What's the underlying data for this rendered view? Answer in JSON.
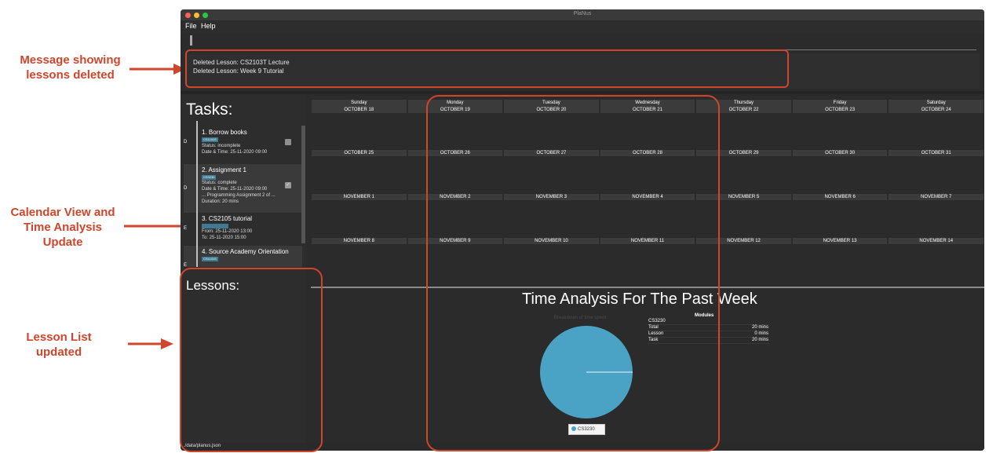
{
  "annotations": {
    "message_deleted": "Message showing\nlessons deleted",
    "calendar_time": "Calendar View and\nTime Analysis\nUpdate",
    "lesson_list": "Lesson List\nupdated"
  },
  "window": {
    "title": "PlaNus"
  },
  "menubar": {
    "items": [
      "File",
      "Help"
    ]
  },
  "result_display": {
    "lines": [
      "Deleted Lesson: CS2103T Lecture",
      "Deleted Lesson: Week 9 Tutorial"
    ]
  },
  "tasks": {
    "heading": "Tasks:",
    "items": [
      {
        "type": "D",
        "name": "1.  Borrow books",
        "tag": "CS1101S",
        "lines": [
          "Status: incomplete",
          "Date & Time: 25-11-2020 09:00"
        ],
        "checked": false,
        "selected": false
      },
      {
        "type": "D",
        "name": "2.  Assignment 1",
        "tag": "CS3230",
        "lines": [
          "Status: complete",
          "Date & Time: 25-11-2020 09:00",
          "... Programming Assignment 2 of ...",
          "Duration: 20 mins"
        ],
        "checked": true,
        "selected": true
      },
      {
        "type": "E",
        "name": "3.  CS2105 tutorial",
        "tag": "",
        "lines": [
          "From: 25-11-2020 13:00",
          "To: 25-11-2020 15:00"
        ],
        "checked": false,
        "selected": false
      },
      {
        "type": "E",
        "name": "4.  Source Academy Orientation",
        "tag": "CS1101S",
        "lines": [],
        "checked": false,
        "selected": true
      }
    ]
  },
  "lessons": {
    "heading": "Lessons:",
    "items": []
  },
  "calendar": {
    "days": [
      "Sunday",
      "Monday",
      "Tuesday",
      "Wednesday",
      "Thursday",
      "Friday",
      "Saturday"
    ],
    "weeks": [
      [
        "OCTOBER 18",
        "OCTOBER 19",
        "OCTOBER 20",
        "OCTOBER 21",
        "OCTOBER 22",
        "OCTOBER 23",
        "OCTOBER 24"
      ],
      [
        "OCTOBER 25",
        "OCTOBER 26",
        "OCTOBER 27",
        "OCTOBER 28",
        "OCTOBER 29",
        "OCTOBER 30",
        "OCTOBER 31"
      ],
      [
        "NOVEMBER 1",
        "NOVEMBER 2",
        "NOVEMBER 3",
        "NOVEMBER 4",
        "NOVEMBER 5",
        "NOVEMBER 6",
        "NOVEMBER 7"
      ],
      [
        "NOVEMBER 8",
        "NOVEMBER 9",
        "NOVEMBER 10",
        "NOVEMBER 11",
        "NOVEMBER 12",
        "NOVEMBER 13",
        "NOVEMBER 14"
      ]
    ]
  },
  "time_analysis": {
    "title": "Time Analysis For The Past Week",
    "chart_subtitle": "Breakdown of time spent",
    "modules_heading": "Modules",
    "modules": [
      {
        "name": "CS3230",
        "rows": [
          {
            "label": "Total",
            "value": "20 mins"
          },
          {
            "label": "Lesson",
            "value": "0 mins"
          },
          {
            "label": "Task",
            "value": "20 mins"
          }
        ]
      }
    ]
  },
  "chart_data": {
    "type": "pie",
    "title": "Breakdown of time spent",
    "categories": [
      "CS3230"
    ],
    "values": [
      100
    ],
    "colors": [
      "#4aa3c4"
    ],
    "legend": [
      "CS3230"
    ],
    "legend_position": "bottom"
  },
  "statusbar": {
    "path": "./data/planus.json"
  },
  "colors": {
    "annotation": "#d0452b",
    "background": "#2b2b2b",
    "tag": "#3e7b91"
  }
}
